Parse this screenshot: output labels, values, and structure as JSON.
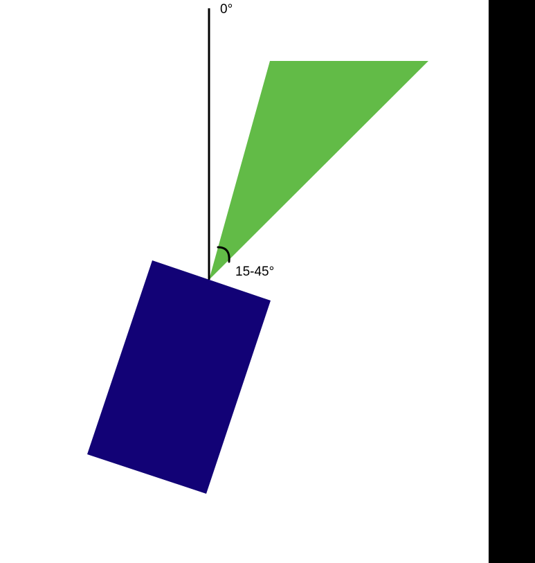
{
  "diagram": {
    "reference_label": "0°",
    "angle_label": "15-45°"
  },
  "colors": {
    "sector": "#62bb47",
    "block": "#120276",
    "line": "#000000",
    "panel": "#000000",
    "background": "#ffffff"
  }
}
